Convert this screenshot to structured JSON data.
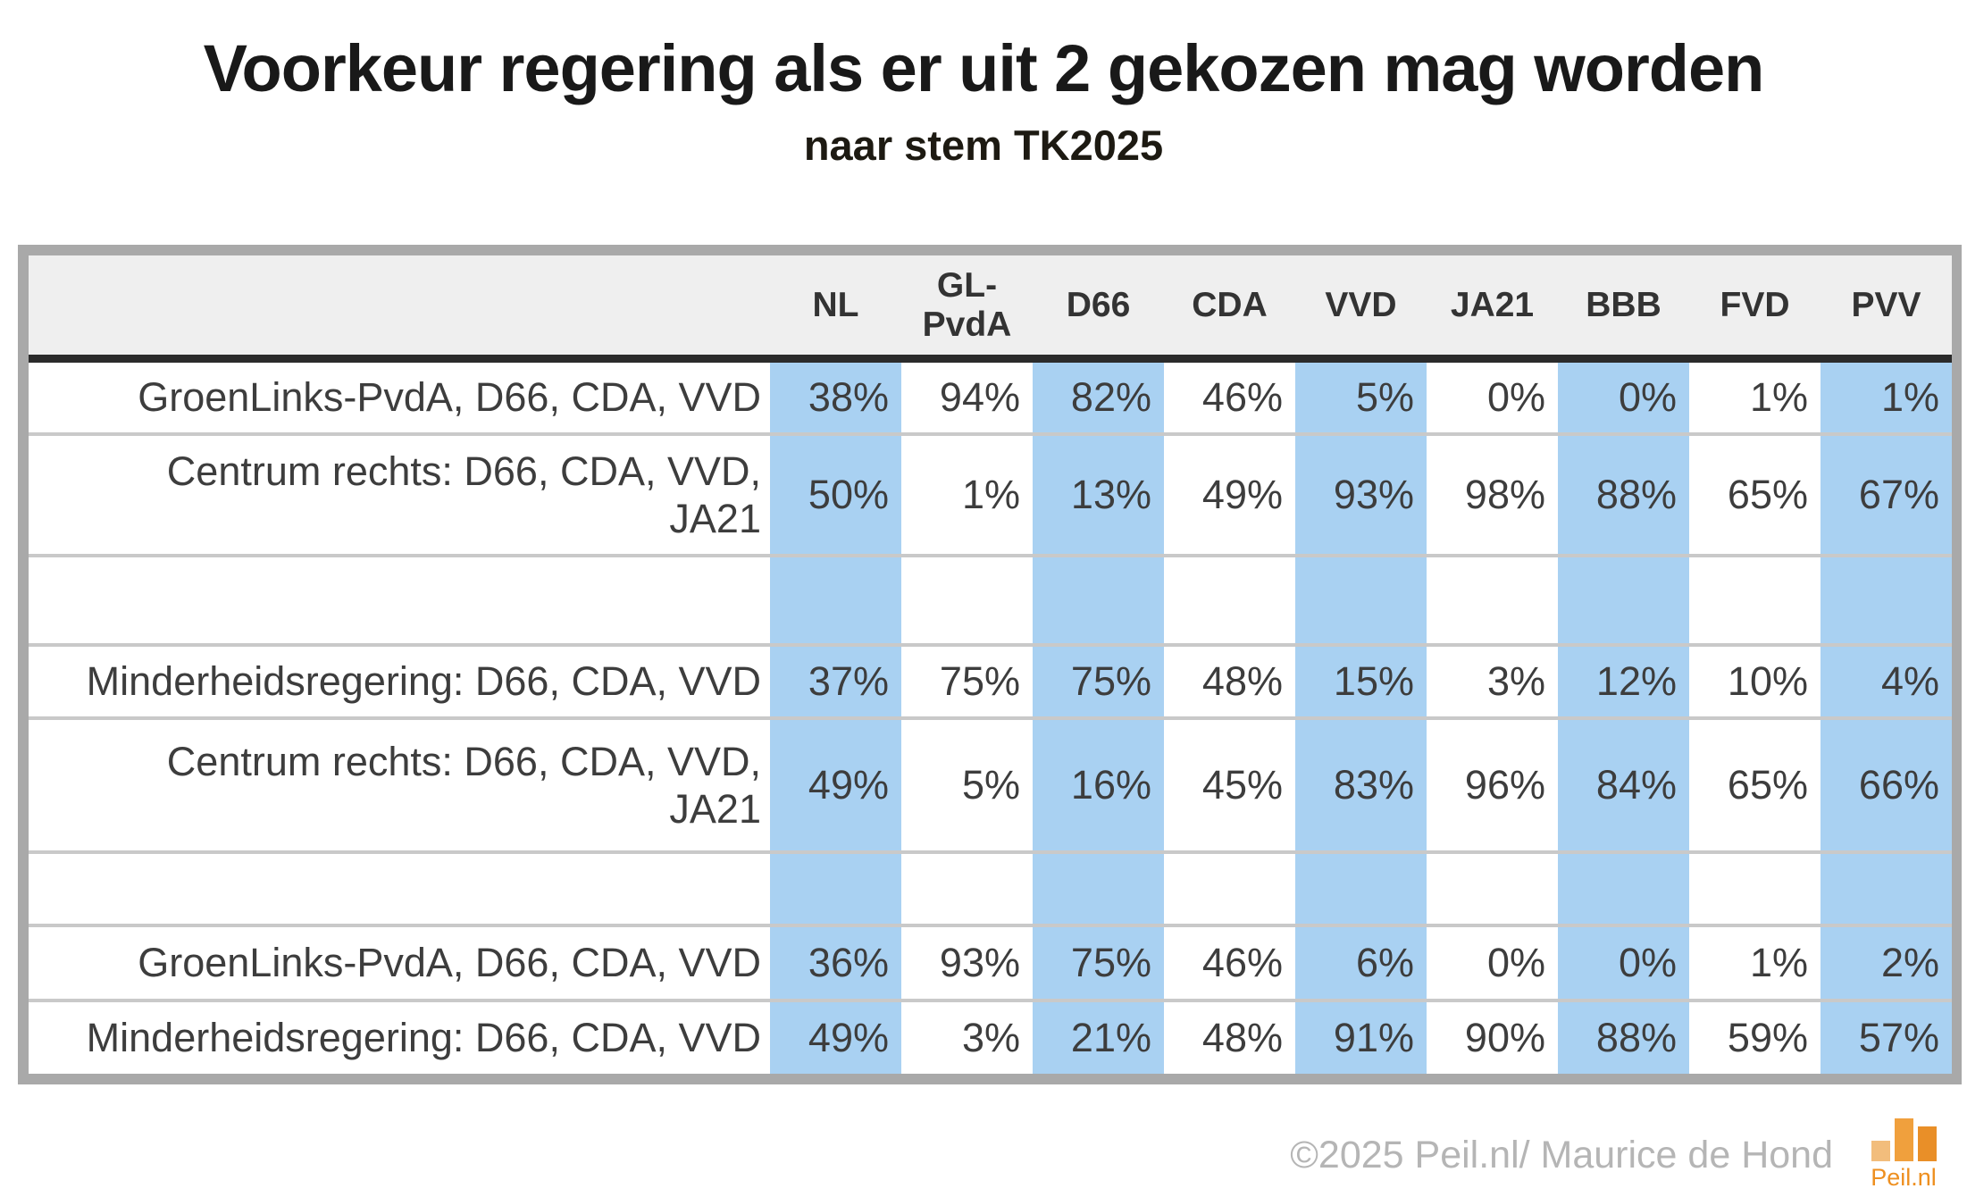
{
  "title": "Voorkeur regering als er uit 2 gekozen mag worden",
  "subtitle": "naar stem TK2025",
  "table": {
    "columns": [
      "NL",
      "GL-PvdA",
      "D66",
      "CDA",
      "VVD",
      "JA21",
      "BBB",
      "FVD",
      "PVV"
    ],
    "highlighted_column_indexes": [
      0,
      2,
      4,
      6,
      8
    ],
    "rows": [
      {
        "label": "GroenLinks-PvdA, D66, CDA, VVD",
        "values": [
          "38%",
          "94%",
          "82%",
          "46%",
          "5%",
          "0%",
          "0%",
          "1%",
          "1%"
        ]
      },
      {
        "label": "Centrum rechts: D66, CDA, VVD,\nJA21",
        "values": [
          "50%",
          "1%",
          "13%",
          "49%",
          "93%",
          "98%",
          "88%",
          "65%",
          "67%"
        ]
      },
      {
        "label": "",
        "values": [
          "",
          "",
          "",
          "",
          "",
          "",
          "",
          "",
          ""
        ]
      },
      {
        "label": "Minderheidsregering: D66, CDA, VVD",
        "values": [
          "37%",
          "75%",
          "75%",
          "48%",
          "15%",
          "3%",
          "12%",
          "10%",
          "4%"
        ]
      },
      {
        "label": "Centrum rechts: D66, CDA, VVD,\nJA21",
        "values": [
          "49%",
          "5%",
          "16%",
          "45%",
          "83%",
          "96%",
          "84%",
          "65%",
          "66%"
        ]
      },
      {
        "label": "",
        "values": [
          "",
          "",
          "",
          "",
          "",
          "",
          "",
          "",
          ""
        ]
      },
      {
        "label": "GroenLinks-PvdA, D66, CDA, VVD",
        "values": [
          "36%",
          "93%",
          "75%",
          "46%",
          "6%",
          "0%",
          "0%",
          "1%",
          "2%"
        ]
      },
      {
        "label": "Minderheidsregering: D66, CDA, VVD",
        "values": [
          "49%",
          "3%",
          "21%",
          "48%",
          "91%",
          "90%",
          "88%",
          "59%",
          "57%"
        ]
      }
    ]
  },
  "footer": {
    "copyright": "©2025 Peil.nl/ Maurice de Hond",
    "logo_text": "Peil.nl"
  },
  "colors": {
    "column_highlight": "#a9d1f2",
    "header_background": "#efefef",
    "outer_border": "#a9a9a9",
    "header_underline": "#2b2b2b",
    "row_separator": "#c9c9c9",
    "text": "#3d3d3d",
    "footer_text": "#b5b5b5",
    "logo_orange": "#ee8f1f",
    "logo_bar_light": "#f2bd7c",
    "logo_bar_mid": "#f0a03d",
    "logo_bar_dark": "#e98f28"
  },
  "chart_data": {
    "type": "table",
    "title": "Voorkeur regering als er uit 2 gekozen mag worden",
    "subtitle": "naar stem TK2025",
    "unit": "%",
    "columns": [
      "NL",
      "GL-PvdA",
      "D66",
      "CDA",
      "VVD",
      "JA21",
      "BBB",
      "FVD",
      "PVV"
    ],
    "highlighted_columns": [
      "NL",
      "D66",
      "VVD",
      "BBB",
      "PVV"
    ],
    "rows": [
      {
        "coalition": "GroenLinks-PvdA, D66, CDA, VVD",
        "values": [
          38,
          94,
          82,
          46,
          5,
          0,
          0,
          1,
          1
        ]
      },
      {
        "coalition": "Centrum rechts: D66, CDA, VVD, JA21",
        "values": [
          50,
          1,
          13,
          49,
          93,
          98,
          88,
          65,
          67
        ]
      },
      {
        "coalition": "Minderheidsregering: D66, CDA, VVD",
        "values": [
          37,
          75,
          75,
          48,
          15,
          3,
          12,
          10,
          4
        ]
      },
      {
        "coalition": "Centrum rechts: D66, CDA, VVD, JA21",
        "values": [
          49,
          5,
          16,
          45,
          83,
          96,
          84,
          65,
          66
        ]
      },
      {
        "coalition": "GroenLinks-PvdA, D66, CDA, VVD",
        "values": [
          36,
          93,
          75,
          46,
          6,
          0,
          0,
          1,
          2
        ]
      },
      {
        "coalition": "Minderheidsregering: D66, CDA, VVD",
        "values": [
          49,
          3,
          21,
          48,
          91,
          90,
          88,
          59,
          57
        ]
      }
    ],
    "row_pairs_compared": [
      [
        0,
        1
      ],
      [
        2,
        3
      ],
      [
        4,
        5
      ]
    ],
    "layout": {
      "spacer_rows_after_display_rows": [
        2,
        5
      ],
      "grid": "horizontal-only",
      "legend": "none"
    }
  }
}
